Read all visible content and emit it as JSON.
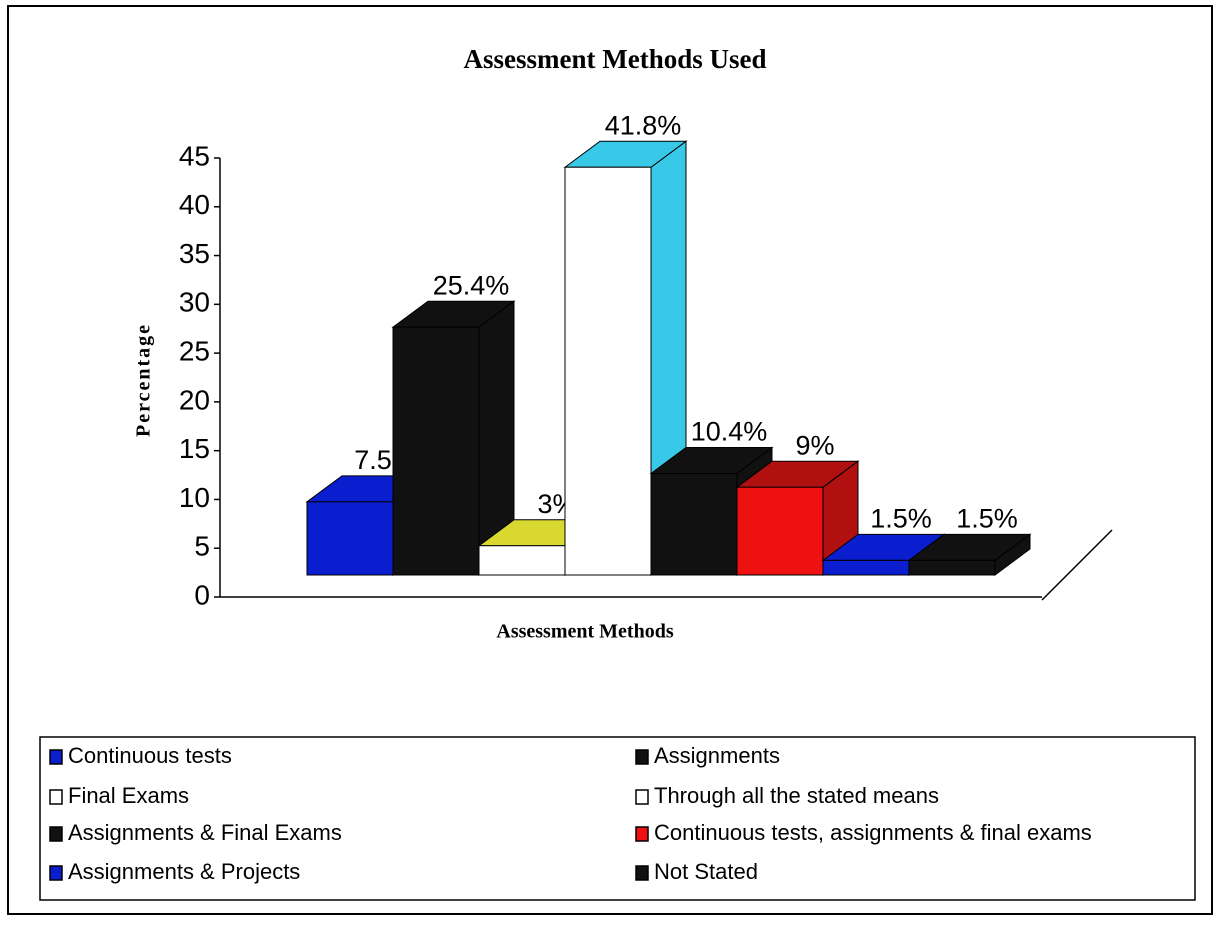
{
  "chart_data": {
    "type": "bar3d",
    "title": "Assessment Methods Used",
    "xlabel": "Assessment Methods",
    "ylabel": "Percentage",
    "ylim": [
      0,
      45
    ],
    "yticks": [
      0,
      5,
      10,
      15,
      20,
      25,
      30,
      35,
      40,
      45
    ],
    "series": [
      {
        "name": "Continuous tests",
        "color": "#0a1ed0",
        "top_color": "#0a1ed0",
        "values": [
          7.5
        ],
        "value_labels": [
          "7.5%"
        ]
      },
      {
        "name": "Assignments",
        "color": "#111111",
        "top_color": "#111111",
        "values": [
          25.4
        ],
        "value_labels": [
          "25.4%"
        ]
      },
      {
        "name": "Final Exams",
        "color": "#ffffff",
        "top_color": "#d8d830",
        "values": [
          3
        ],
        "value_labels": [
          "3%"
        ]
      },
      {
        "name": "Through all the stated means",
        "color": "#ffffff",
        "top_color": "#38c8e8",
        "values": [
          41.8
        ],
        "value_labels": [
          "41.8%"
        ]
      },
      {
        "name": "Assignments & Final Exams",
        "color": "#111111",
        "top_color": "#111111",
        "values": [
          10.4
        ],
        "value_labels": [
          "10.4%"
        ]
      },
      {
        "name": "Continuous tests, assignments & final exams",
        "color": "#ee1111",
        "top_color": "#b01010",
        "values": [
          9
        ],
        "value_labels": [
          "9%"
        ]
      },
      {
        "name": "Assignments & Projects",
        "color": "#0a1ed0",
        "top_color": "#0a1ed0",
        "values": [
          1.5
        ],
        "value_labels": [
          "1.5%"
        ]
      },
      {
        "name": "Not Stated",
        "color": "#111111",
        "top_color": "#111111",
        "values": [
          1.5
        ],
        "value_labels": [
          "1.5%"
        ]
      }
    ],
    "legend": "bottom"
  }
}
